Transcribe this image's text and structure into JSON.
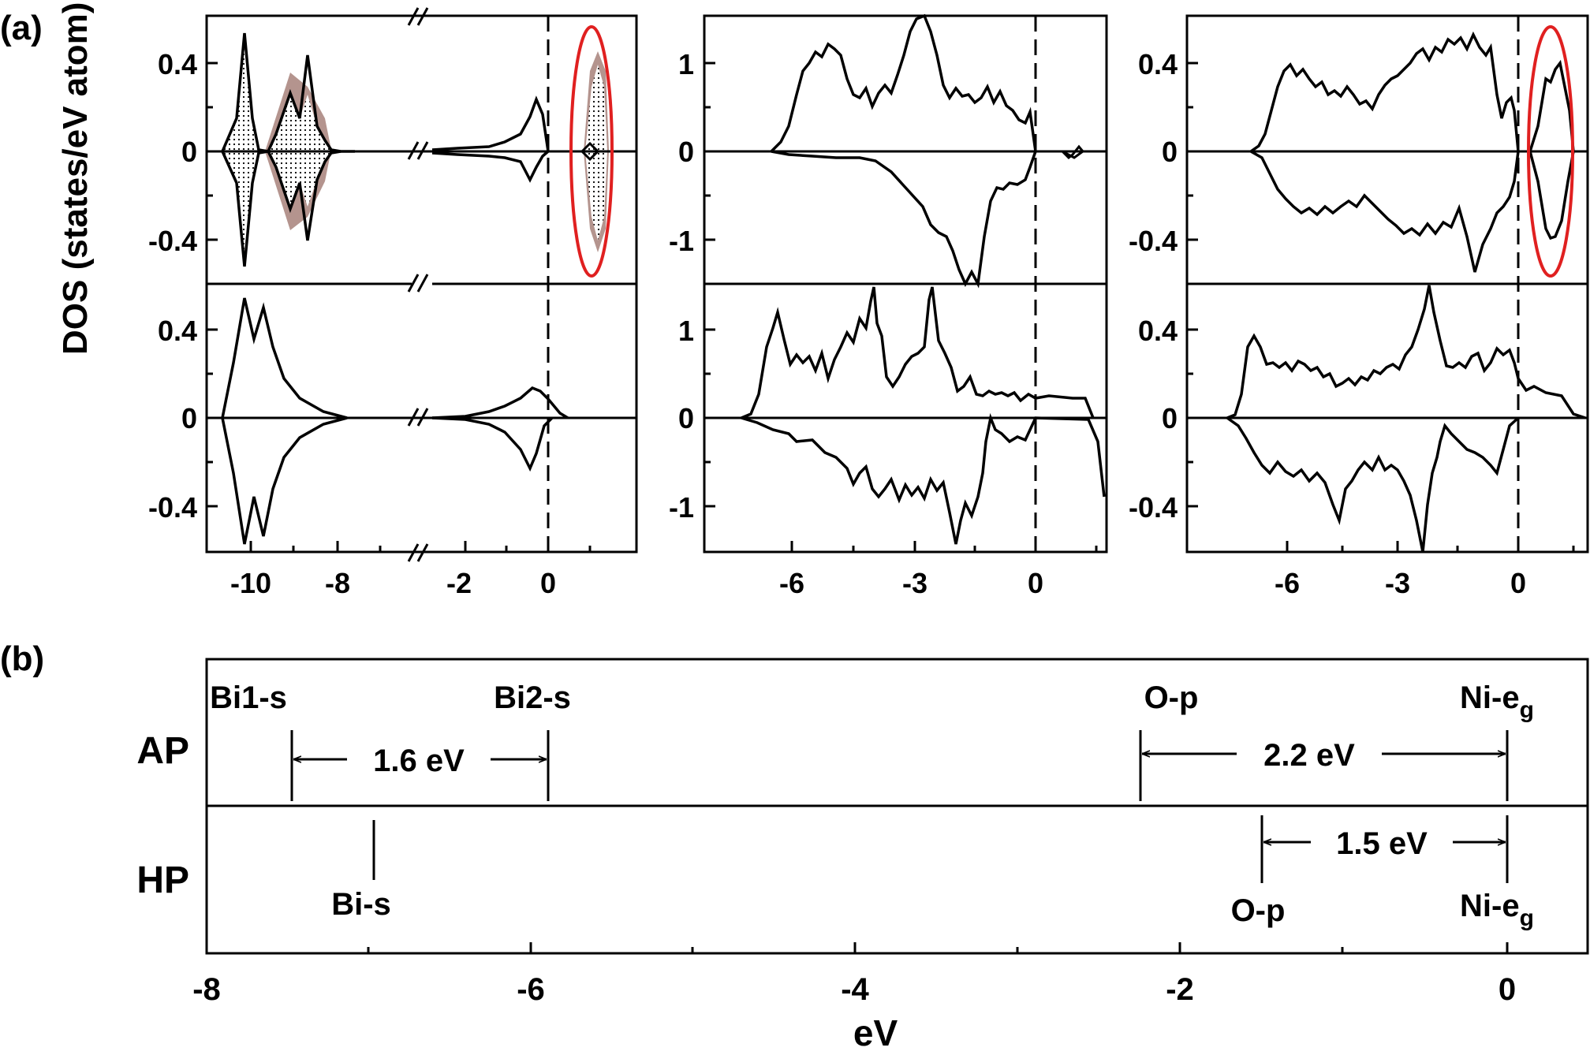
{
  "figure": {
    "panel_a_label": "(a)",
    "panel_b_label": "(b)",
    "ylabel": "DOS (states/eV atom)"
  },
  "chart_data": [
    {
      "type": "line",
      "panel": "a-left",
      "x_ticks_left": [
        "-10",
        "-8"
      ],
      "x_ticks_right": [
        "-2",
        "0"
      ],
      "x_break": "//",
      "ylim": [
        -0.6,
        0.6
      ],
      "y_ticks": [
        "0.4",
        "0",
        "-0.4"
      ],
      "top": {
        "spin_up": [
          [
            -10.8,
            0.0
          ],
          [
            -10.5,
            0.1
          ],
          [
            -10.2,
            0.22
          ],
          [
            -10.0,
            0.0
          ],
          [
            -9.9,
            0.53
          ],
          [
            -9.7,
            0.35
          ],
          [
            -9.5,
            0.12
          ],
          [
            -9.3,
            0.18
          ],
          [
            -9.1,
            0.41
          ],
          [
            -8.9,
            0.2
          ],
          [
            -8.6,
            0.06
          ],
          [
            -8.3,
            0.0
          ]
        ],
        "spin_down": [
          [
            -10.8,
            0.0
          ],
          [
            -10.5,
            -0.1
          ],
          [
            -10.2,
            -0.22
          ],
          [
            -10.0,
            -0.5
          ],
          [
            -9.9,
            -0.53
          ],
          [
            -9.7,
            -0.35
          ],
          [
            -9.5,
            -0.12
          ],
          [
            -9.3,
            -0.18
          ],
          [
            -9.1,
            -0.4
          ],
          [
            -8.9,
            -0.2
          ],
          [
            -8.6,
            -0.06
          ],
          [
            -8.3,
            0.0
          ]
        ],
        "near_fermi_up": [
          [
            -2.1,
            0.0
          ],
          [
            -1.5,
            0.01
          ],
          [
            -0.9,
            0.02
          ],
          [
            -0.5,
            0.04
          ],
          [
            -0.3,
            0.15
          ],
          [
            -0.2,
            0.24
          ],
          [
            -0.1,
            0.1
          ],
          [
            0.0,
            0.0
          ]
        ],
        "near_fermi_down": [
          [
            -2.1,
            0.0
          ],
          [
            -1.5,
            -0.01
          ],
          [
            -0.9,
            -0.02
          ],
          [
            -0.5,
            -0.05
          ],
          [
            -0.3,
            -0.18
          ],
          [
            -0.2,
            -0.06
          ],
          [
            0.0,
            0.0
          ]
        ],
        "highlighted_gap_state": [
          [
            0.3,
            0.0
          ],
          [
            0.5,
            0.3
          ],
          [
            0.6,
            0.35
          ],
          [
            0.7,
            0.2
          ],
          [
            0.8,
            0.0
          ]
        ]
      },
      "bottom": {
        "spin_up": [
          [
            -10.8,
            0.0
          ],
          [
            -10.5,
            0.3
          ],
          [
            -10.2,
            0.58
          ],
          [
            -10.0,
            0.42
          ],
          [
            -9.8,
            0.5
          ],
          [
            -9.6,
            0.3
          ],
          [
            -9.3,
            0.12
          ],
          [
            -8.8,
            0.04
          ],
          [
            -8.3,
            0.0
          ]
        ],
        "spin_down": [
          [
            -10.8,
            0.0
          ],
          [
            -10.5,
            -0.3
          ],
          [
            -10.2,
            -0.58
          ],
          [
            -10.0,
            -0.42
          ],
          [
            -9.8,
            -0.5
          ],
          [
            -9.6,
            -0.3
          ],
          [
            -9.3,
            -0.12
          ],
          [
            -8.8,
            -0.04
          ],
          [
            -8.3,
            0.0
          ]
        ],
        "near_fermi_up": [
          [
            -2.1,
            0.0
          ],
          [
            -1.5,
            0.01
          ],
          [
            -0.9,
            0.03
          ],
          [
            -0.6,
            0.08
          ],
          [
            -0.3,
            0.11
          ],
          [
            -0.2,
            0.13
          ],
          [
            0.0,
            0.08
          ],
          [
            0.2,
            0.0
          ]
        ],
        "near_fermi_down": [
          [
            -2.1,
            0.0
          ],
          [
            -1.5,
            -0.01
          ],
          [
            -0.9,
            -0.03
          ],
          [
            -0.6,
            -0.1
          ],
          [
            -0.3,
            -0.18
          ],
          [
            -0.2,
            -0.22
          ],
          [
            0.0,
            -0.03
          ],
          [
            0.2,
            0.0
          ]
        ]
      }
    },
    {
      "type": "line",
      "panel": "a-middle",
      "xlim": [
        -7.5,
        1.4
      ],
      "x_ticks": [
        "-6",
        "-3",
        "0"
      ],
      "ylim": [
        -1.5,
        1.5
      ],
      "y_ticks": [
        "1",
        "0",
        "-1"
      ],
      "top": {
        "spin_up": [
          [
            -6.5,
            0.0
          ],
          [
            -6.2,
            0.2
          ],
          [
            -5.8,
            0.6
          ],
          [
            -5.4,
            1.1
          ],
          [
            -5.0,
            0.9
          ],
          [
            -4.6,
            0.5
          ],
          [
            -4.3,
            0.6
          ],
          [
            -4.0,
            0.8
          ],
          [
            -3.6,
            0.9
          ],
          [
            -3.3,
            1.2
          ],
          [
            -2.9,
            1.5
          ],
          [
            -2.6,
            1.0
          ],
          [
            -2.3,
            0.7
          ],
          [
            -1.9,
            0.7
          ],
          [
            -1.5,
            0.6
          ],
          [
            -1.0,
            0.55
          ],
          [
            -0.5,
            0.5
          ],
          [
            -0.2,
            0.3
          ],
          [
            0.0,
            0.0
          ]
        ],
        "spin_down": [
          [
            -6.5,
            0.0
          ],
          [
            -6.0,
            -0.05
          ],
          [
            -5.5,
            -0.08
          ],
          [
            -5.0,
            -0.1
          ],
          [
            -4.5,
            -0.12
          ],
          [
            -4.0,
            -0.2
          ],
          [
            -3.5,
            -0.4
          ],
          [
            -3.0,
            -0.7
          ],
          [
            -2.5,
            -1.0
          ],
          [
            -2.2,
            -1.3
          ],
          [
            -1.9,
            -1.5
          ],
          [
            -1.6,
            -1.2
          ],
          [
            -1.3,
            -1.5
          ],
          [
            -1.0,
            -0.8
          ],
          [
            -0.6,
            -0.5
          ],
          [
            -0.2,
            -0.3
          ],
          [
            0.0,
            0.0
          ]
        ],
        "gap_state": [
          [
            0.7,
            0.0
          ],
          [
            0.8,
            0.05
          ],
          [
            0.9,
            0.08
          ],
          [
            1.0,
            0.0
          ]
        ]
      },
      "bottom": {
        "spin_up": [
          [
            -7.0,
            0.0
          ],
          [
            -6.6,
            0.5
          ],
          [
            -6.3,
            1.1
          ],
          [
            -6.0,
            0.7
          ],
          [
            -5.5,
            0.6
          ],
          [
            -5.0,
            0.55
          ],
          [
            -4.5,
            0.8
          ],
          [
            -4.2,
            1.2
          ],
          [
            -4.0,
            1.5
          ],
          [
            -3.7,
            0.7
          ],
          [
            -3.3,
            0.6
          ],
          [
            -3.0,
            0.9
          ],
          [
            -2.6,
            1.3
          ],
          [
            -2.3,
            0.6
          ],
          [
            -2.0,
            0.3
          ],
          [
            -1.5,
            0.25
          ],
          [
            -1.0,
            0.25
          ],
          [
            -0.5,
            0.2
          ],
          [
            0.0,
            0.2
          ],
          [
            0.8,
            0.2
          ],
          [
            1.2,
            0.0
          ]
        ],
        "spin_down": [
          [
            -7.0,
            0.0
          ],
          [
            -6.5,
            -0.1
          ],
          [
            -6.0,
            -0.15
          ],
          [
            -5.5,
            -0.2
          ],
          [
            -5.0,
            -0.3
          ],
          [
            -4.5,
            -0.6
          ],
          [
            -4.2,
            -0.8
          ],
          [
            -3.8,
            -0.7
          ],
          [
            -3.4,
            -0.8
          ],
          [
            -3.0,
            -0.9
          ],
          [
            -2.6,
            -1.1
          ],
          [
            -2.3,
            -0.9
          ],
          [
            -2.0,
            -1.4
          ],
          [
            -1.7,
            -1.0
          ],
          [
            -1.4,
            -0.6
          ],
          [
            -1.2,
            0.0
          ],
          [
            -0.8,
            -0.2
          ],
          [
            -0.4,
            -0.25
          ],
          [
            0.0,
            -0.05
          ],
          [
            1.0,
            -0.1
          ],
          [
            1.3,
            -0.8
          ]
        ]
      }
    },
    {
      "type": "line",
      "panel": "a-right",
      "xlim": [
        -7.5,
        1.6
      ],
      "x_ticks": [
        "-6",
        "-3",
        "0"
      ],
      "ylim": [
        -0.6,
        0.6
      ],
      "y_ticks": [
        "0.4",
        "0",
        "-0.4"
      ],
      "top": {
        "spin_up": [
          [
            -6.6,
            0.0
          ],
          [
            -6.3,
            0.05
          ],
          [
            -6.0,
            0.22
          ],
          [
            -5.7,
            0.37
          ],
          [
            -5.3,
            0.3
          ],
          [
            -4.8,
            0.28
          ],
          [
            -4.3,
            0.24
          ],
          [
            -3.8,
            0.2
          ],
          [
            -3.3,
            0.25
          ],
          [
            -2.8,
            0.33
          ],
          [
            -2.3,
            0.4
          ],
          [
            -1.8,
            0.45
          ],
          [
            -1.4,
            0.48
          ],
          [
            -1.0,
            0.42
          ],
          [
            -0.6,
            0.3
          ],
          [
            -0.3,
            0.2
          ],
          [
            0.0,
            0.0
          ]
        ],
        "spin_down": [
          [
            -6.6,
            0.0
          ],
          [
            -6.3,
            -0.05
          ],
          [
            -6.0,
            -0.2
          ],
          [
            -5.6,
            -0.28
          ],
          [
            -5.1,
            -0.3
          ],
          [
            -4.5,
            -0.28
          ],
          [
            -4.0,
            -0.25
          ],
          [
            -3.5,
            -0.23
          ],
          [
            -3.0,
            -0.27
          ],
          [
            -2.5,
            -0.3
          ],
          [
            -2.0,
            -0.35
          ],
          [
            -1.6,
            -0.4
          ],
          [
            -1.3,
            -0.55
          ],
          [
            -1.0,
            -0.35
          ],
          [
            -0.6,
            -0.2
          ],
          [
            -0.2,
            -0.15
          ],
          [
            0.0,
            0.0
          ]
        ],
        "highlighted_gap_state_up": [
          [
            0.4,
            0.0
          ],
          [
            0.6,
            0.2
          ],
          [
            0.8,
            0.35
          ],
          [
            1.0,
            0.25
          ],
          [
            1.2,
            0.0
          ]
        ],
        "highlighted_gap_state_down": [
          [
            0.4,
            0.0
          ],
          [
            0.6,
            -0.2
          ],
          [
            0.8,
            -0.4
          ],
          [
            1.0,
            -0.25
          ],
          [
            1.2,
            0.0
          ]
        ]
      },
      "bottom": {
        "spin_up": [
          [
            -6.8,
            0.0
          ],
          [
            -6.4,
            0.35
          ],
          [
            -6.0,
            0.25
          ],
          [
            -5.5,
            0.2
          ],
          [
            -5.0,
            0.2
          ],
          [
            -4.5,
            0.18
          ],
          [
            -4.0,
            0.15
          ],
          [
            -3.5,
            0.15
          ],
          [
            -3.0,
            0.18
          ],
          [
            -2.5,
            0.2
          ],
          [
            -2.0,
            0.25
          ],
          [
            -1.6,
            0.55
          ],
          [
            -1.3,
            0.22
          ],
          [
            -1.0,
            0.25
          ],
          [
            -0.5,
            0.3
          ],
          [
            0.0,
            0.25
          ],
          [
            0.5,
            0.1
          ],
          [
            1.0,
            0.08
          ],
          [
            1.4,
            0.0
          ]
        ],
        "spin_down": [
          [
            -6.8,
            0.0
          ],
          [
            -6.4,
            -0.1
          ],
          [
            -6.0,
            -0.2
          ],
          [
            -5.5,
            -0.25
          ],
          [
            -5.0,
            -0.3
          ],
          [
            -4.6,
            -0.45
          ],
          [
            -4.2,
            -0.3
          ],
          [
            -3.7,
            -0.25
          ],
          [
            -3.2,
            -0.3
          ],
          [
            -2.7,
            -0.3
          ],
          [
            -2.2,
            -0.3
          ],
          [
            -1.8,
            -0.38
          ],
          [
            -1.5,
            -0.6
          ],
          [
            -1.2,
            0.0
          ],
          [
            -0.9,
            -0.2
          ],
          [
            -0.5,
            -0.25
          ],
          [
            0.0,
            0.0
          ]
        ]
      }
    },
    {
      "type": "diagram",
      "panel": "b",
      "xlim": [
        -8.0,
        0.5
      ],
      "x_ticks": [
        "-8",
        "-6",
        "-4",
        "-2",
        "0"
      ],
      "xlabel": "eV",
      "rows": [
        {
          "name": "AP",
          "labels": [
            {
              "text": "Bi1-s",
              "x": -7.5
            },
            {
              "text": "Bi2-s",
              "x": -5.9
            },
            {
              "text": "O-p",
              "x": -2.25
            },
            {
              "text": "Ni-e",
              "sub": "g",
              "x": 0.0
            }
          ],
          "intervals": [
            {
              "from": -7.5,
              "to": -5.9,
              "label": "1.6 eV"
            },
            {
              "from": -2.25,
              "to": 0.0,
              "label": "2.2 eV"
            }
          ]
        },
        {
          "name": "HP",
          "labels": [
            {
              "text": "Bi-s",
              "x": -7.0
            },
            {
              "text": "O-p",
              "x": -1.5
            },
            {
              "text": "Ni-e",
              "sub": "g",
              "x": 0.0
            }
          ],
          "intervals": [
            {
              "from": -1.5,
              "to": 0.0,
              "label": "1.5 eV"
            }
          ]
        }
      ]
    }
  ]
}
